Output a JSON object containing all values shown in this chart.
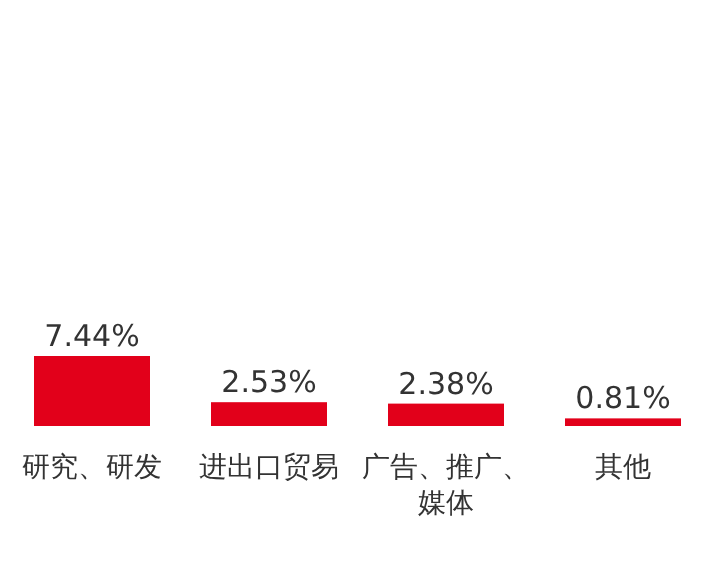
{
  "chart_data": {
    "type": "bar",
    "categories": [
      "研究、研发",
      "进出口贸易",
      "广告、推广、媒体",
      "其他"
    ],
    "values": [
      7.44,
      2.53,
      2.38,
      0.81
    ],
    "value_labels": [
      "7.44%",
      "2.53%",
      "2.38%",
      "0.81%"
    ],
    "color": "#e2001a"
  }
}
